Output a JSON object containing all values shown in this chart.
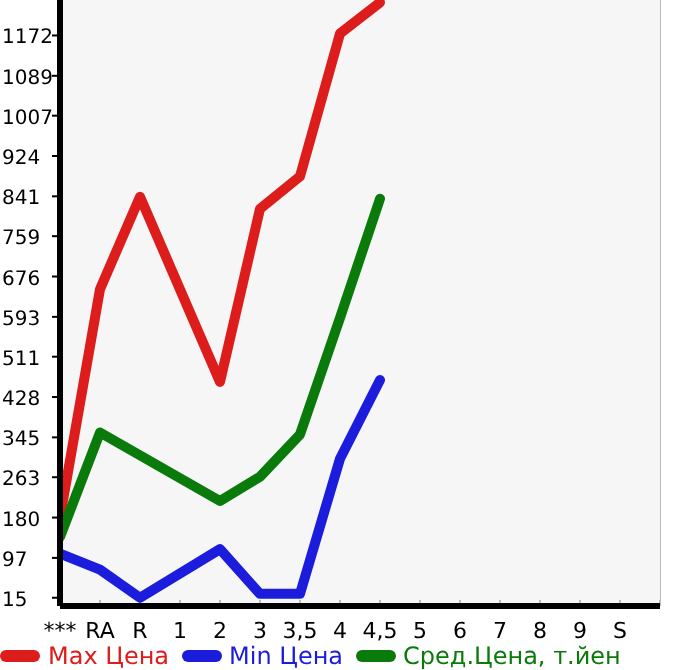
{
  "chart_data": {
    "type": "line",
    "categories": [
      "***",
      "RA",
      "R",
      "1",
      "2",
      "3",
      "3,5",
      "4",
      "4,5",
      "5",
      "6",
      "7",
      "8",
      "9",
      "S"
    ],
    "series": [
      {
        "name": "Max Цена",
        "color": "#dd1c1c",
        "values": [
          180,
          650,
          840,
          null,
          459,
          815,
          882,
          1176,
          1240,
          null,
          null,
          null,
          null,
          null,
          null
        ]
      },
      {
        "name": "Min Цена",
        "color": "#1c1cdd",
        "values": [
          106,
          73,
          15,
          null,
          115,
          23,
          23,
          301,
          463,
          null,
          null,
          null,
          null,
          null,
          null
        ]
      },
      {
        "name": "Сред.Цена, т.йен",
        "color": "#0a7a0a",
        "values": [
          140,
          355,
          null,
          null,
          214,
          264,
          351,
          591,
          836,
          null,
          null,
          null,
          null,
          null,
          null
        ]
      }
    ],
    "ylim": [
      -2,
      1245
    ],
    "yticks": [
      15,
      97,
      180,
      263,
      345,
      428,
      511,
      593,
      676,
      759,
      841,
      924,
      1007,
      1089,
      1172
    ],
    "grid": true,
    "legend": "bottom",
    "marker": "none",
    "line_style": "solid"
  }
}
